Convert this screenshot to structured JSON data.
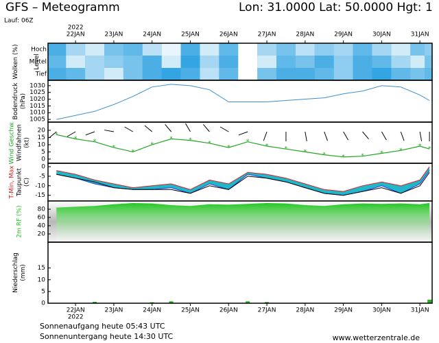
{
  "header": {
    "title": "GFS – Meteogramm",
    "coords": "Lon: 31.0000 Lat: 50.0000 Hgt: 1",
    "run": "Lauf: 06Z"
  },
  "footer": {
    "sunrise": "Sonnenaufgang heute 05:43 UTC",
    "sunset": "Sonnenuntergang heute 14:30 UTC",
    "site": "www.wetterzentrale.de"
  },
  "chart_data": {
    "type": "meteogram",
    "year": "2022",
    "x": [
      -0.5,
      0,
      0.5,
      1,
      1.5,
      2,
      2.5,
      3,
      3.5,
      4,
      4.5,
      5,
      5.5,
      6,
      6.5,
      7,
      7.5,
      8,
      8.5,
      9,
      9.25
    ],
    "xlim": [
      -0.72,
      9.32
    ],
    "xticks": [
      {
        "value": 0,
        "label": "22JAN"
      },
      {
        "value": 1,
        "label": "23JAN"
      },
      {
        "value": 2,
        "label": "24JAN"
      },
      {
        "value": 3,
        "label": "25JAN"
      },
      {
        "value": 4,
        "label": "26JAN"
      },
      {
        "value": 5,
        "label": "27JAN"
      },
      {
        "value": 6,
        "label": "28JAN"
      },
      {
        "value": 7,
        "label": "29JAN"
      },
      {
        "value": 8,
        "label": "30JAN"
      },
      {
        "value": 9,
        "label": "31JAN"
      }
    ],
    "panels": [
      {
        "type": "clouds",
        "ylabel": [
          "Wolken (%)",
          "Level"
        ],
        "color": "#1e9be0",
        "series": [
          {
            "name": "Hoch",
            "color": "#ffffff",
            "values": [
              20,
              60,
              80,
              40,
              30,
              70,
              90,
              20,
              80,
              30,
              100,
              60,
              40,
              70,
              50,
              60,
              30,
              60,
              80,
              40,
              50
            ]
          },
          {
            "name": "Mittel",
            "color": "#ffffff",
            "values": [
              30,
              80,
              60,
              50,
              40,
              20,
              80,
              10,
              60,
              20,
              100,
              80,
              30,
              40,
              20,
              50,
              20,
              30,
              60,
              80,
              40
            ]
          },
          {
            "name": "Tief",
            "color": "#ffffff",
            "values": [
              20,
              30,
              60,
              80,
              40,
              20,
              10,
              20,
              70,
              30,
              100,
              40,
              20,
              20,
              30,
              50,
              20,
              10,
              30,
              40,
              30
            ]
          }
        ]
      },
      {
        "type": "line",
        "ylabel": [
          "Bodendruck",
          "(hPa)"
        ],
        "ylim": [
          1003,
          1034
        ],
        "yticks": [
          1005,
          1010,
          1015,
          1020,
          1025,
          1030
        ],
        "series": [
          {
            "name": "Bodendruck",
            "color": "#3a8fd0",
            "values": [
              1005,
              1008,
              1011,
              1016,
              1022,
              1029,
              1031,
              1030,
              1027,
              1018,
              1018,
              1018,
              1019,
              1020,
              1021,
              1024,
              1026,
              1030,
              1029,
              1023,
              1019
            ]
          }
        ]
      },
      {
        "type": "wind",
        "ylabel": [
          "Wind Geschw.",
          "Windfahnen",
          "(kt)"
        ],
        "ylim": [
          -2.9,
          25.7
        ],
        "yticks": [
          0,
          5,
          10,
          15,
          20
        ],
        "series": [
          {
            "name": "Wind Geschw.",
            "color": "#22a522",
            "values": [
              17,
              14,
              12,
              8,
              5,
              10,
              14,
              13,
              11,
              8,
              12,
              9,
              7,
              5,
              3,
              1.5,
              2,
              4,
              6,
              9,
              7
            ]
          },
          {
            "name": "Windfahnen",
            "color": "#000000",
            "values": [
              230,
              240,
              250,
              280,
              300,
              310,
              320,
              330,
              320,
              300,
              250,
              200,
              180,
              170,
              160,
              150,
              140,
              150,
              160,
              170,
              180
            ]
          }
        ]
      },
      {
        "type": "temp",
        "ylabel": [
          "T-Min, Max",
          "Taupunkt",
          "(C)"
        ],
        "ylim": [
          -18,
          1.8
        ],
        "yticks": [
          0,
          -5,
          -10,
          -15
        ],
        "band_color": "#20b8c8",
        "series": [
          {
            "name": "Max",
            "color": "#e02020",
            "values": [
              -2,
              -4,
              -7,
              -9,
              -11,
              -10,
              -9,
              -12,
              -7,
              -9,
              -3,
              -4,
              -6,
              -9,
              -12,
              -13,
              -10,
              -8,
              -10,
              -7,
              0
            ]
          },
          {
            "name": "Min",
            "color": "#2040e0",
            "values": [
              -4,
              -6,
              -9,
              -11,
              -12,
              -12,
              -11,
              -14,
              -9,
              -12,
              -4,
              -6,
              -8,
              -11,
              -14,
              -15,
              -13,
              -10,
              -14,
              -9,
              -2
            ]
          },
          {
            "name": "Taupunkt",
            "color": "#000000",
            "values": [
              -4,
              -6,
              -8,
              -11,
              -12,
              -12,
              -12,
              -14,
              -10,
              -12,
              -5,
              -6,
              -8,
              -11,
              -14,
              -15,
              -13,
              -11,
              -14,
              -10,
              -3
            ]
          }
        ]
      },
      {
        "type": "area",
        "ylabel": [
          "2m RF (%)"
        ],
        "ylim": [
          0,
          100
        ],
        "yticks": [
          20,
          40,
          60,
          80
        ],
        "series": [
          {
            "name": "2m RF",
            "color": "#22c522",
            "values": [
              84,
              86,
              88,
              92,
              95,
              94,
              90,
              88,
              92,
              91,
              93,
              95,
              94,
              90,
              88,
              92,
              94,
              93,
              94,
              92,
              95
            ]
          }
        ]
      },
      {
        "type": "bar",
        "ylabel": [
          "Niederschlag",
          "(mm)"
        ],
        "ylim": [
          0,
          26
        ],
        "yticks": [
          0,
          5,
          10,
          15
        ],
        "series": [
          {
            "name": "Niederschlag",
            "color": "#22b522",
            "values": [
              0,
              0,
              0.6,
              0,
              0,
              0.4,
              0.8,
              0,
              0,
              0,
              0.8,
              0.5,
              0,
              0,
              0,
              0,
              0,
              0.2,
              0,
              0,
              1.5
            ]
          }
        ]
      }
    ]
  }
}
